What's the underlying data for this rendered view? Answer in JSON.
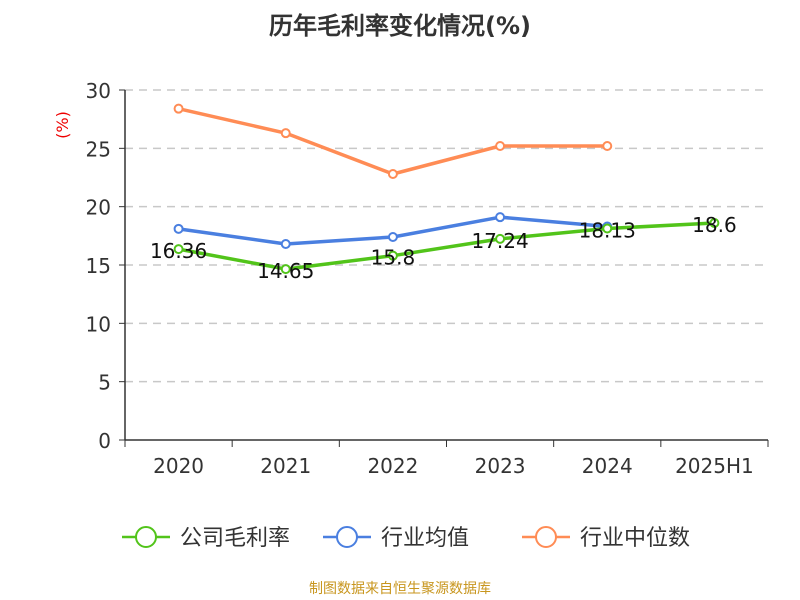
{
  "chart_data": {
    "type": "line",
    "title": "历年毛利率变化情况(%)",
    "ylabel": "(%)",
    "categories": [
      "2020",
      "2021",
      "2022",
      "2023",
      "2024",
      "2025H1"
    ],
    "ylim": [
      0,
      30
    ],
    "yticks": [
      0,
      5,
      10,
      15,
      20,
      25,
      30
    ],
    "grid": true,
    "legend_position": "bottom",
    "series": [
      {
        "name": "公司毛利率",
        "color": "#52c41a",
        "values": [
          16.36,
          14.65,
          15.8,
          17.24,
          18.13,
          18.6
        ],
        "labels": [
          "16.36",
          "14.65",
          "15.8",
          "17.24",
          "18.13",
          "18.6"
        ]
      },
      {
        "name": "行业均值",
        "color": "#4a7fe0",
        "values": [
          18.1,
          16.8,
          17.4,
          19.1,
          18.3,
          null
        ]
      },
      {
        "name": "行业中位数",
        "color": "#ff8c55",
        "values": [
          28.4,
          26.3,
          22.8,
          25.2,
          25.2,
          null
        ]
      }
    ]
  },
  "source": "制图数据来自恒生聚源数据库"
}
